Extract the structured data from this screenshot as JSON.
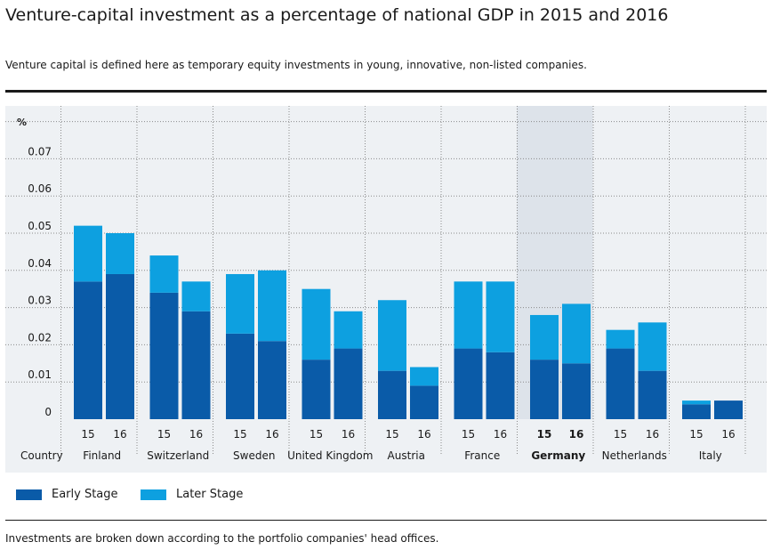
{
  "header": {
    "title": "Venture-capital investment as a percentage of national GDP in 2015 and 2016",
    "subtitle": "Venture capital is defined here as temporary equity investments in young, innovative, non-listed companies."
  },
  "footer": {
    "note": "Investments are broken down according to the portfolio companies' head offices."
  },
  "legend": {
    "items": [
      {
        "label": "Early Stage",
        "color": "#0a5ba8"
      },
      {
        "label": "Later Stage",
        "color": "#0da0e0"
      }
    ]
  },
  "chart_data": {
    "type": "bar",
    "stacked": true,
    "unit_label": "%",
    "row_label": "Country",
    "categories": [
      "Finland",
      "Switzerland",
      "Sweden",
      "United Kingdom",
      "Austria",
      "France",
      "Germany",
      "Netherlands",
      "Italy"
    ],
    "highlighted_category": "Germany",
    "years": [
      "15",
      "16"
    ],
    "ylim": [
      0,
      0.08
    ],
    "yticks": [
      "0",
      "0.01",
      "0.02",
      "0.03",
      "0.04",
      "0.05",
      "0.06",
      "0.07"
    ],
    "grid": true,
    "legend_position": "bottom-left",
    "series": [
      {
        "name": "Early Stage",
        "color": "#0a5ba8",
        "values": [
          [
            0.037,
            0.039
          ],
          [
            0.034,
            0.029
          ],
          [
            0.023,
            0.021
          ],
          [
            0.016,
            0.019
          ],
          [
            0.013,
            0.009
          ],
          [
            0.019,
            0.018
          ],
          [
            0.016,
            0.015
          ],
          [
            0.019,
            0.013
          ],
          [
            0.004,
            0.005
          ]
        ]
      },
      {
        "name": "Later Stage",
        "color": "#0da0e0",
        "values": [
          [
            0.015,
            0.011
          ],
          [
            0.01,
            0.008
          ],
          [
            0.016,
            0.019
          ],
          [
            0.019,
            0.01
          ],
          [
            0.019,
            0.005
          ],
          [
            0.018,
            0.019
          ],
          [
            0.012,
            0.016
          ],
          [
            0.005,
            0.013
          ],
          [
            0.001,
            0.0
          ]
        ]
      }
    ]
  }
}
